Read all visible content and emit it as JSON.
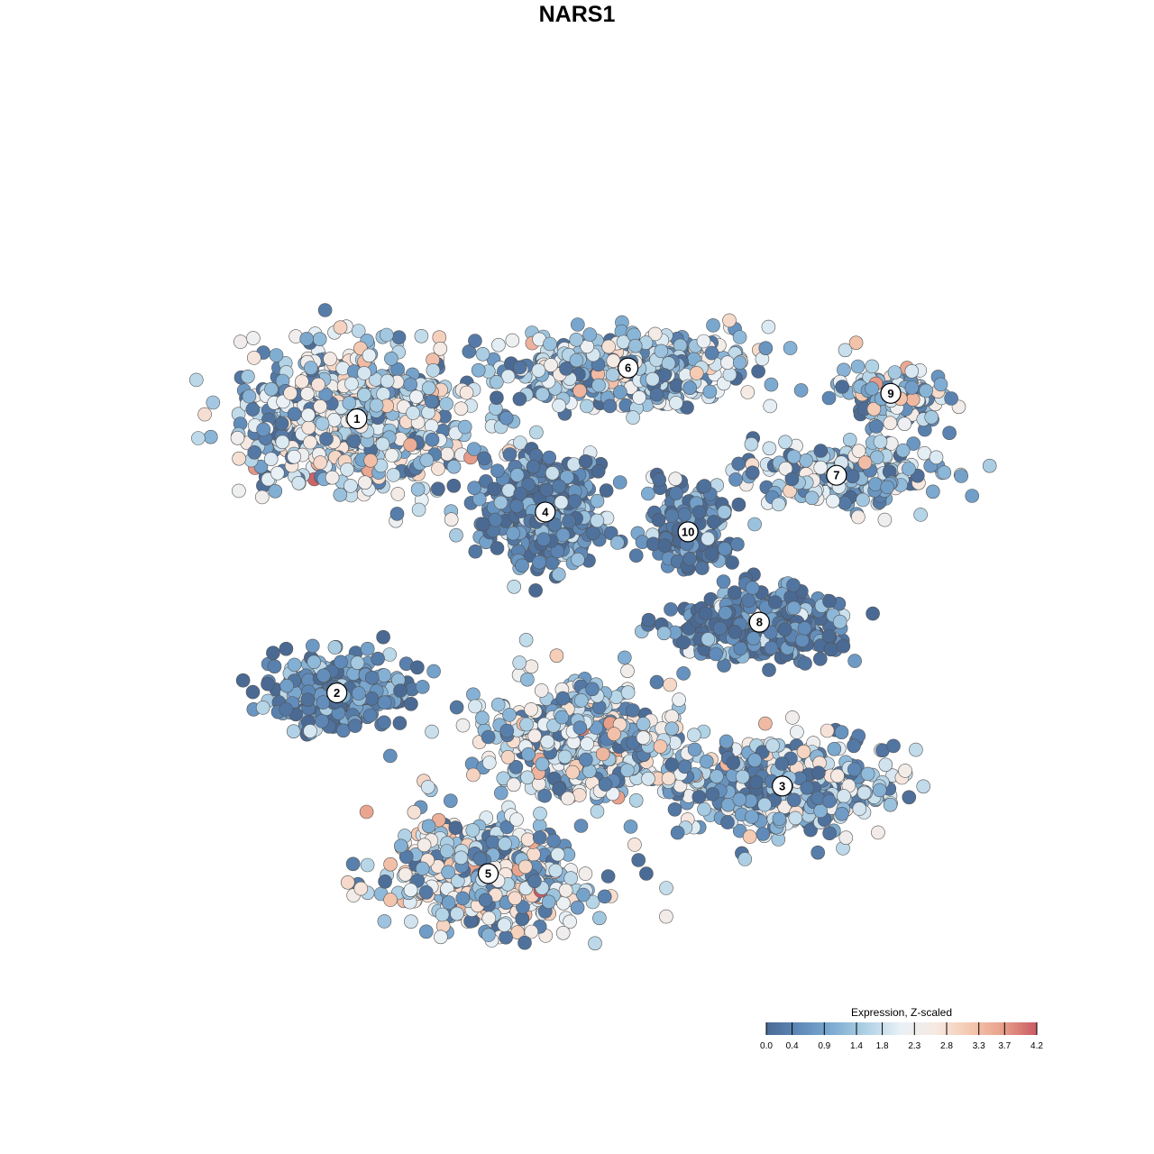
{
  "title": "NARS1",
  "chart_data": {
    "type": "scatter",
    "description_free": true,
    "clusters": [
      {
        "id": "1",
        "center": [
          -8.5,
          5.6
        ],
        "spread": [
          3.6,
          2.4
        ],
        "n": 650,
        "mean_expr": 1.9
      },
      {
        "id": "6",
        "center": [
          1.0,
          7.4
        ],
        "spread": [
          3.6,
          1.1
        ],
        "n": 520,
        "mean_expr": 1.6
      },
      {
        "id": "9",
        "center": [
          10.2,
          6.5
        ],
        "spread": [
          1.9,
          0.9
        ],
        "n": 140,
        "mean_expr": 1.6
      },
      {
        "id": "7",
        "center": [
          8.3,
          3.6
        ],
        "spread": [
          3.4,
          1.0
        ],
        "n": 230,
        "mean_expr": 1.6
      },
      {
        "id": "4",
        "center": [
          -1.9,
          2.3
        ],
        "spread": [
          1.7,
          1.6
        ],
        "n": 520,
        "mean_expr": 0.5
      },
      {
        "id": "10",
        "center": [
          3.1,
          1.6
        ],
        "spread": [
          1.3,
          1.4
        ],
        "n": 160,
        "mean_expr": 0.4
      },
      {
        "id": "8",
        "center": [
          5.6,
          -1.6
        ],
        "spread": [
          2.6,
          1.0
        ],
        "n": 380,
        "mean_expr": 0.4
      },
      {
        "id": "2",
        "center": [
          -9.2,
          -4.1
        ],
        "spread": [
          2.2,
          1.3
        ],
        "n": 260,
        "mean_expr": 0.6
      },
      {
        "id": "3",
        "center": [
          6.4,
          -7.4
        ],
        "spread": [
          3.4,
          1.5
        ],
        "n": 440,
        "mean_expr": 1.6
      },
      {
        "id": "5",
        "center": [
          -3.9,
          -10.5
        ],
        "spread": [
          3.0,
          1.7
        ],
        "n": 560,
        "mean_expr": 2.0
      },
      {
        "id": "mid",
        "center": [
          -0.5,
          -5.8
        ],
        "spread": [
          3.1,
          1.9
        ],
        "n": 480,
        "mean_expr": 1.9
      }
    ],
    "xlim": [
      -15,
      15
    ],
    "ylim": [
      -15,
      15
    ],
    "color_scale": {
      "title": "Expression, Z-scaled",
      "min": 0.0,
      "max": 4.2,
      "tick_labels": [
        "0.0",
        "0.4",
        "0.9",
        "1.4",
        "1.8",
        "2.3",
        "2.8",
        "3.3",
        "3.7",
        "4.2"
      ],
      "colors": [
        "#4a6a94",
        "#5f8ab9",
        "#7fadd3",
        "#b2d3e6",
        "#eaf1f6",
        "#f6e9e2",
        "#f5c9b1",
        "#e89f8a",
        "#c95b63"
      ]
    },
    "grid": false,
    "legend_placement": "bottom-right"
  }
}
